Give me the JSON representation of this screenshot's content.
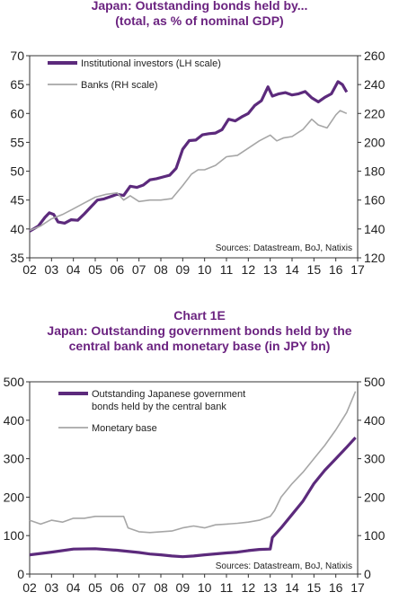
{
  "charts": [
    {
      "title_line1": "Japan: Outstanding bonds held by...",
      "title_line2": "(total, as % of nominal GDP)"
    },
    {
      "number": "Chart 1E",
      "title_line1": "Japan: Outstanding government bonds held by the",
      "title_line2": "central bank and monetary base (in JPY bn)"
    }
  ],
  "colors": {
    "title": "#6b2380",
    "purple": "#5c2a7c",
    "gray": "#a6a6a6",
    "text": "#222222"
  },
  "chart_data": [
    {
      "type": "line",
      "title": "Japan: Outstanding bonds held by... (total, as % of nominal GDP)",
      "xlabel": "",
      "x_tick_labels": [
        "02",
        "03",
        "04",
        "05",
        "06",
        "07",
        "08",
        "09",
        "10",
        "11",
        "12",
        "13",
        "14",
        "15",
        "16",
        "17"
      ],
      "xlim": [
        2002,
        2017
      ],
      "ylim_left": [
        35,
        70
      ],
      "y_ticks_left": [
        "35",
        "40",
        "45",
        "50",
        "55",
        "60",
        "65",
        "70"
      ],
      "ylim_right": [
        120,
        260
      ],
      "y_ticks_right": [
        "120",
        "140",
        "160",
        "180",
        "200",
        "220",
        "240",
        "260"
      ],
      "legend_position": "top-left",
      "source": "Sources: Datastream, BoJ, Natixis",
      "series": [
        {
          "name": "Institutional investors (LH scale)",
          "axis": "left",
          "color": "#5c2a7c",
          "points": [
            [
              2002.0,
              39.6
            ],
            [
              2002.4,
              40.5
            ],
            [
              2002.7,
              42.0
            ],
            [
              2002.9,
              42.8
            ],
            [
              2003.1,
              42.5
            ],
            [
              2003.3,
              41.2
            ],
            [
              2003.6,
              41.0
            ],
            [
              2003.9,
              41.6
            ],
            [
              2004.2,
              41.5
            ],
            [
              2004.5,
              42.6
            ],
            [
              2004.8,
              43.8
            ],
            [
              2005.1,
              45.0
            ],
            [
              2005.4,
              45.2
            ],
            [
              2005.7,
              45.6
            ],
            [
              2006.0,
              46.0
            ],
            [
              2006.3,
              45.8
            ],
            [
              2006.6,
              47.4
            ],
            [
              2006.9,
              47.2
            ],
            [
              2007.2,
              47.6
            ],
            [
              2007.5,
              48.5
            ],
            [
              2007.8,
              48.7
            ],
            [
              2008.1,
              49.0
            ],
            [
              2008.4,
              49.3
            ],
            [
              2008.7,
              50.5
            ],
            [
              2009.0,
              53.8
            ],
            [
              2009.3,
              55.3
            ],
            [
              2009.6,
              55.4
            ],
            [
              2009.9,
              56.3
            ],
            [
              2010.2,
              56.5
            ],
            [
              2010.5,
              56.6
            ],
            [
              2010.8,
              57.2
            ],
            [
              2011.1,
              59.0
            ],
            [
              2011.4,
              58.7
            ],
            [
              2011.7,
              59.4
            ],
            [
              2012.0,
              60.0
            ],
            [
              2012.3,
              61.4
            ],
            [
              2012.6,
              62.2
            ],
            [
              2012.9,
              64.6
            ],
            [
              2013.1,
              63.0
            ],
            [
              2013.4,
              63.4
            ],
            [
              2013.7,
              63.6
            ],
            [
              2014.0,
              63.2
            ],
            [
              2014.3,
              63.4
            ],
            [
              2014.6,
              63.8
            ],
            [
              2014.9,
              62.7
            ],
            [
              2015.2,
              62.0
            ],
            [
              2015.5,
              62.8
            ],
            [
              2015.8,
              63.4
            ],
            [
              2016.1,
              65.5
            ],
            [
              2016.3,
              65.0
            ],
            [
              2016.5,
              63.7
            ]
          ]
        },
        {
          "name": "Banks (RH scale)",
          "axis": "right",
          "color": "#a6a6a6",
          "points": [
            [
              2002.0,
              139
            ],
            [
              2002.5,
              142
            ],
            [
              2003.0,
              147
            ],
            [
              2003.5,
              150
            ],
            [
              2004.0,
              154
            ],
            [
              2004.5,
              158
            ],
            [
              2005.0,
              162
            ],
            [
              2005.5,
              164
            ],
            [
              2006.0,
              165
            ],
            [
              2006.3,
              160
            ],
            [
              2006.6,
              163
            ],
            [
              2007.0,
              159
            ],
            [
              2007.5,
              160
            ],
            [
              2008.0,
              160
            ],
            [
              2008.5,
              161
            ],
            [
              2009.0,
              170
            ],
            [
              2009.4,
              178
            ],
            [
              2009.7,
              181
            ],
            [
              2010.0,
              181
            ],
            [
              2010.5,
              184
            ],
            [
              2011.0,
              190
            ],
            [
              2011.5,
              191
            ],
            [
              2012.0,
              196
            ],
            [
              2012.5,
              201
            ],
            [
              2013.0,
              205
            ],
            [
              2013.3,
              201
            ],
            [
              2013.6,
              203
            ],
            [
              2014.0,
              204
            ],
            [
              2014.5,
              209
            ],
            [
              2014.9,
              216
            ],
            [
              2015.2,
              212
            ],
            [
              2015.6,
              210
            ],
            [
              2016.0,
              219
            ],
            [
              2016.2,
              222
            ],
            [
              2016.5,
              220
            ]
          ]
        }
      ]
    },
    {
      "type": "line",
      "title": "Japan: Outstanding government bonds held by the central bank and monetary base (in JPY bn)",
      "xlabel": "",
      "x_tick_labels": [
        "02",
        "03",
        "04",
        "05",
        "06",
        "07",
        "08",
        "09",
        "10",
        "11",
        "12",
        "13",
        "14",
        "15",
        "16",
        "17"
      ],
      "xlim": [
        2002,
        2017
      ],
      "ylim_left": [
        0,
        500
      ],
      "y_ticks_left": [
        "0",
        "100",
        "200",
        "300",
        "400",
        "500"
      ],
      "ylim_right": [
        0,
        500
      ],
      "y_ticks_right": [
        "0",
        "100",
        "200",
        "300",
        "400",
        "500"
      ],
      "legend_position": "top-left",
      "source": "Sources: Datastream, BoJ, Natixis",
      "series": [
        {
          "name": "Outstanding Japanese government bonds held by the central bank",
          "legend_lines": [
            "Outstanding Japanese government",
            "bonds held by the central bank"
          ],
          "axis": "left",
          "color": "#5c2a7c",
          "points": [
            [
              2002.0,
              50
            ],
            [
              2003.0,
              57
            ],
            [
              2004.0,
              65
            ],
            [
              2005.0,
              66
            ],
            [
              2006.0,
              62
            ],
            [
              2007.0,
              56
            ],
            [
              2007.5,
              52
            ],
            [
              2008.0,
              50
            ],
            [
              2008.5,
              47
            ],
            [
              2009.0,
              45
            ],
            [
              2009.5,
              47
            ],
            [
              2010.0,
              50
            ],
            [
              2011.0,
              55
            ],
            [
              2011.5,
              57
            ],
            [
              2012.0,
              61
            ],
            [
              2012.5,
              64
            ],
            [
              2013.0,
              65
            ],
            [
              2013.1,
              95
            ],
            [
              2013.5,
              120
            ],
            [
              2014.0,
              155
            ],
            [
              2014.5,
              190
            ],
            [
              2015.0,
              235
            ],
            [
              2015.5,
              270
            ],
            [
              2016.0,
              300
            ],
            [
              2016.5,
              330
            ],
            [
              2016.9,
              355
            ]
          ]
        },
        {
          "name": "Monetary base",
          "axis": "right",
          "color": "#a6a6a6",
          "points": [
            [
              2002.0,
              140
            ],
            [
              2002.5,
              130
            ],
            [
              2003.0,
              140
            ],
            [
              2003.5,
              135
            ],
            [
              2004.0,
              145
            ],
            [
              2004.5,
              145
            ],
            [
              2005.0,
              150
            ],
            [
              2005.5,
              150
            ],
            [
              2006.0,
              150
            ],
            [
              2006.3,
              150
            ],
            [
              2006.5,
              120
            ],
            [
              2007.0,
              110
            ],
            [
              2007.5,
              108
            ],
            [
              2008.0,
              110
            ],
            [
              2008.5,
              112
            ],
            [
              2009.0,
              120
            ],
            [
              2009.5,
              125
            ],
            [
              2010.0,
              120
            ],
            [
              2010.5,
              128
            ],
            [
              2011.0,
              130
            ],
            [
              2011.5,
              132
            ],
            [
              2012.0,
              135
            ],
            [
              2012.5,
              140
            ],
            [
              2013.0,
              150
            ],
            [
              2013.2,
              165
            ],
            [
              2013.5,
              200
            ],
            [
              2014.0,
              235
            ],
            [
              2014.5,
              265
            ],
            [
              2015.0,
              300
            ],
            [
              2015.5,
              335
            ],
            [
              2016.0,
              375
            ],
            [
              2016.5,
              420
            ],
            [
              2016.9,
              475
            ]
          ]
        }
      ]
    }
  ]
}
